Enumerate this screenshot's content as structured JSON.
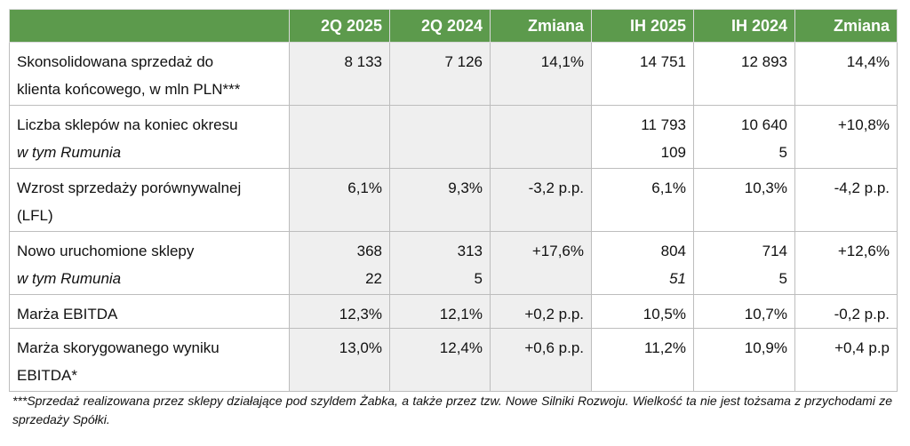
{
  "table": {
    "headers": [
      "",
      "2Q 2025",
      "2Q 2024",
      "Zmiana",
      "IH 2025",
      "IH 2024",
      "Zmiana"
    ],
    "rows": [
      {
        "label": [
          "Skonsolidowana sprzedaż do",
          "klienta końcowego, w mln PLN***"
        ],
        "cells": [
          [
            "8 133"
          ],
          [
            "7 126"
          ],
          [
            "14,1%"
          ],
          [
            "14 751"
          ],
          [
            "12 893"
          ],
          [
            "14,4%"
          ]
        ]
      },
      {
        "label": [
          "Liczba sklepów na koniec okresu",
          "w tym Rumunia"
        ],
        "cells": [
          [],
          [],
          [],
          [
            "11 793",
            "109"
          ],
          [
            "10 640",
            "5"
          ],
          [
            "+10,8%"
          ]
        ]
      },
      {
        "label": [
          "Wzrost sprzedaży porównywalnej",
          "(LFL)"
        ],
        "cells": [
          [
            "6,1%"
          ],
          [
            "9,3%"
          ],
          [
            "-3,2 p.p."
          ],
          [
            "6,1%"
          ],
          [
            "10,3%"
          ],
          [
            "-4,2 p.p."
          ]
        ]
      },
      {
        "label": [
          "Nowo uruchomione sklepy",
          "w tym Rumunia"
        ],
        "cells": [
          [
            "368",
            "22"
          ],
          [
            "313",
            "5"
          ],
          [
            "+17,6%"
          ],
          [
            "804",
            "51"
          ],
          [
            "714",
            "5"
          ],
          [
            "+12,6%"
          ]
        ]
      },
      {
        "label": [
          "Marża EBITDA"
        ],
        "cells": [
          [
            "12,3%"
          ],
          [
            "12,1%"
          ],
          [
            "+0,2 p.p."
          ],
          [
            "10,5%"
          ],
          [
            "10,7%"
          ],
          [
            "-0,2 p.p."
          ]
        ]
      },
      {
        "label": [
          "Marża skorygowanego wyniku",
          "EBITDA*"
        ],
        "cells": [
          [
            "13,0%"
          ],
          [
            "12,4%"
          ],
          [
            "+0,6 p.p."
          ],
          [
            "11,2%"
          ],
          [
            "10,9%"
          ],
          [
            "+0,4 p.p"
          ]
        ]
      }
    ]
  },
  "footnote": "***Sprzedaż realizowana przez sklepy działające pod szyldem Żabka, a także przez tzw. Nowe Silniki Rozwoju. Wielkość ta nie jest tożsama z przychodami ze sprzedaży Spółki.",
  "colors": {
    "header_bg": "#5c9a4c",
    "header_text": "#ffffff",
    "shade": "#efefef"
  }
}
